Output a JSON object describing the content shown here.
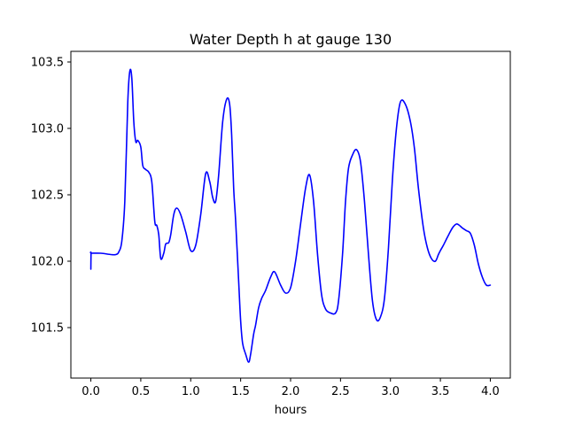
{
  "chart_data": {
    "type": "line",
    "title": "Water Depth h at gauge 130",
    "xlabel": "hours",
    "ylabel": "",
    "xlim": [
      -0.2,
      4.2
    ],
    "ylim": [
      101.12,
      103.58
    ],
    "x_ticks": [
      0.0,
      0.5,
      1.0,
      1.5,
      2.0,
      2.5,
      3.0,
      3.5,
      4.0
    ],
    "x_tick_labels": [
      "0.0",
      "0.5",
      "1.0",
      "1.5",
      "2.0",
      "2.5",
      "3.0",
      "3.5",
      "4.0"
    ],
    "y_ticks": [
      101.5,
      102.0,
      102.5,
      103.0,
      103.5
    ],
    "y_tick_labels": [
      "101.5",
      "102.0",
      "102.5",
      "103.0",
      "103.5"
    ],
    "grid": false,
    "legend": "none",
    "series": [
      {
        "color": "#0000ff",
        "x": [
          0.0,
          0.002,
          0.005,
          0.1,
          0.2,
          0.25,
          0.28,
          0.31,
          0.34,
          0.37,
          0.39,
          0.41,
          0.43,
          0.45,
          0.47,
          0.5,
          0.52,
          0.55,
          0.58,
          0.61,
          0.64,
          0.66,
          0.68,
          0.7,
          0.73,
          0.75,
          0.78,
          0.8,
          0.83,
          0.86,
          0.9,
          0.95,
          1.0,
          1.05,
          1.1,
          1.15,
          1.19,
          1.22,
          1.25,
          1.28,
          1.32,
          1.36,
          1.39,
          1.41,
          1.43,
          1.45,
          1.48,
          1.5,
          1.52,
          1.55,
          1.58,
          1.6,
          1.63,
          1.65,
          1.68,
          1.71,
          1.75,
          1.8,
          1.84,
          1.9,
          1.95,
          2.0,
          2.05,
          2.1,
          2.15,
          2.19,
          2.23,
          2.27,
          2.31,
          2.35,
          2.4,
          2.45,
          2.48,
          2.52,
          2.55,
          2.58,
          2.62,
          2.66,
          2.7,
          2.74,
          2.78,
          2.82,
          2.86,
          2.9,
          2.94,
          2.98,
          3.02,
          3.06,
          3.1,
          3.15,
          3.2,
          3.24,
          3.28,
          3.33,
          3.37,
          3.41,
          3.45,
          3.48,
          3.5,
          3.53,
          3.57,
          3.62,
          3.66,
          3.69,
          3.72,
          3.76,
          3.8,
          3.84,
          3.88,
          3.92,
          3.96,
          4.0
        ],
        "values": [
          101.94,
          102.06,
          102.06,
          102.06,
          102.05,
          102.05,
          102.07,
          102.15,
          102.45,
          103.2,
          103.43,
          103.38,
          103.05,
          102.9,
          102.91,
          102.86,
          102.72,
          102.69,
          102.67,
          102.6,
          102.3,
          102.27,
          102.2,
          102.02,
          102.06,
          102.13,
          102.14,
          102.2,
          102.35,
          102.4,
          102.35,
          102.22,
          102.08,
          102.12,
          102.35,
          102.66,
          102.6,
          102.48,
          102.45,
          102.65,
          103.05,
          103.22,
          103.18,
          102.95,
          102.55,
          102.3,
          101.85,
          101.55,
          101.38,
          101.3,
          101.24,
          101.3,
          101.45,
          101.52,
          101.65,
          101.72,
          101.78,
          101.88,
          101.92,
          101.82,
          101.76,
          101.8,
          102.0,
          102.28,
          102.55,
          102.65,
          102.45,
          102.05,
          101.75,
          101.64,
          101.61,
          101.61,
          101.7,
          102.05,
          102.45,
          102.7,
          102.8,
          102.84,
          102.75,
          102.45,
          102.05,
          101.7,
          101.56,
          101.58,
          101.72,
          102.1,
          102.62,
          103.0,
          103.2,
          103.18,
          103.05,
          102.85,
          102.55,
          102.25,
          102.1,
          102.02,
          102.0,
          102.05,
          102.08,
          102.12,
          102.18,
          102.25,
          102.28,
          102.27,
          102.25,
          102.23,
          102.21,
          102.12,
          101.98,
          101.88,
          101.82,
          101.82
        ]
      }
    ]
  }
}
